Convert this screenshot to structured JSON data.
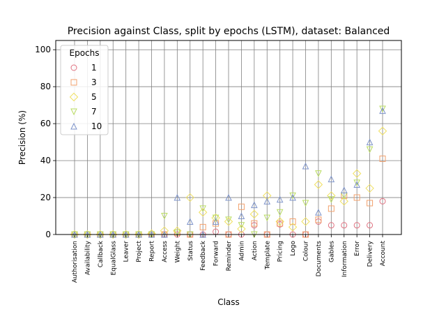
{
  "chart_data": {
    "type": "scatter",
    "title": "Precision against Class, split by epochs (LSTM), dataset: Balanced",
    "xlabel": "Class",
    "ylabel": "Precision (%)",
    "ylim": [
      0,
      105
    ],
    "yticks": [
      0,
      20,
      40,
      60,
      80,
      100
    ],
    "grid": true,
    "legend": {
      "title": "Epochs",
      "placement": "top-left"
    },
    "categories": [
      "Authorisation",
      "Availability",
      "Callback",
      "EqualGlass",
      "Leaver",
      "Project",
      "Report",
      "Access",
      "Weight",
      "Status",
      "Feedback",
      "Forward",
      "Reminder",
      "Admin",
      "Action",
      "Template",
      "Pricing",
      "Logo",
      "Colour",
      "Documents",
      "Gables",
      "Information",
      "Error",
      "Delivery",
      "Account"
    ],
    "series": [
      {
        "name": "1",
        "marker": "circle",
        "color": "#e0707f",
        "values": [
          0,
          0,
          0,
          0,
          0,
          0,
          0,
          0,
          0,
          0,
          0,
          1.5,
          0,
          0,
          5,
          0,
          5.5,
          0,
          0,
          7,
          5,
          5,
          5,
          5,
          18
        ]
      },
      {
        "name": "3",
        "marker": "square",
        "color": "#f2a06c",
        "values": [
          0,
          0,
          0,
          0,
          0,
          0,
          0,
          0,
          1,
          0,
          4,
          6,
          0,
          15,
          6,
          0,
          6,
          7,
          0,
          8,
          14,
          21,
          20,
          17,
          41
        ]
      },
      {
        "name": "5",
        "marker": "diamond",
        "color": "#f0e060",
        "values": [
          0,
          0,
          0,
          0,
          0,
          0,
          0.5,
          2,
          2,
          20,
          12,
          9,
          7,
          3,
          11,
          21,
          7,
          4,
          7,
          27,
          21,
          18,
          33,
          25,
          56
        ]
      },
      {
        "name": "7",
        "marker": "triangle-down",
        "color": "#b9dc62",
        "values": [
          0,
          0,
          0,
          0,
          0,
          0,
          0,
          10,
          1,
          0,
          14,
          9,
          8,
          5,
          0,
          9,
          12,
          21,
          17,
          33,
          19,
          21,
          28,
          46,
          68
        ]
      },
      {
        "name": "10",
        "marker": "triangle-up",
        "color": "#7d93c9",
        "values": [
          0,
          0,
          0,
          0,
          0,
          0,
          0,
          0,
          20,
          7,
          0,
          7,
          20,
          10,
          16,
          18,
          19,
          20,
          37,
          12,
          30,
          24,
          27,
          50,
          67
        ]
      }
    ]
  }
}
